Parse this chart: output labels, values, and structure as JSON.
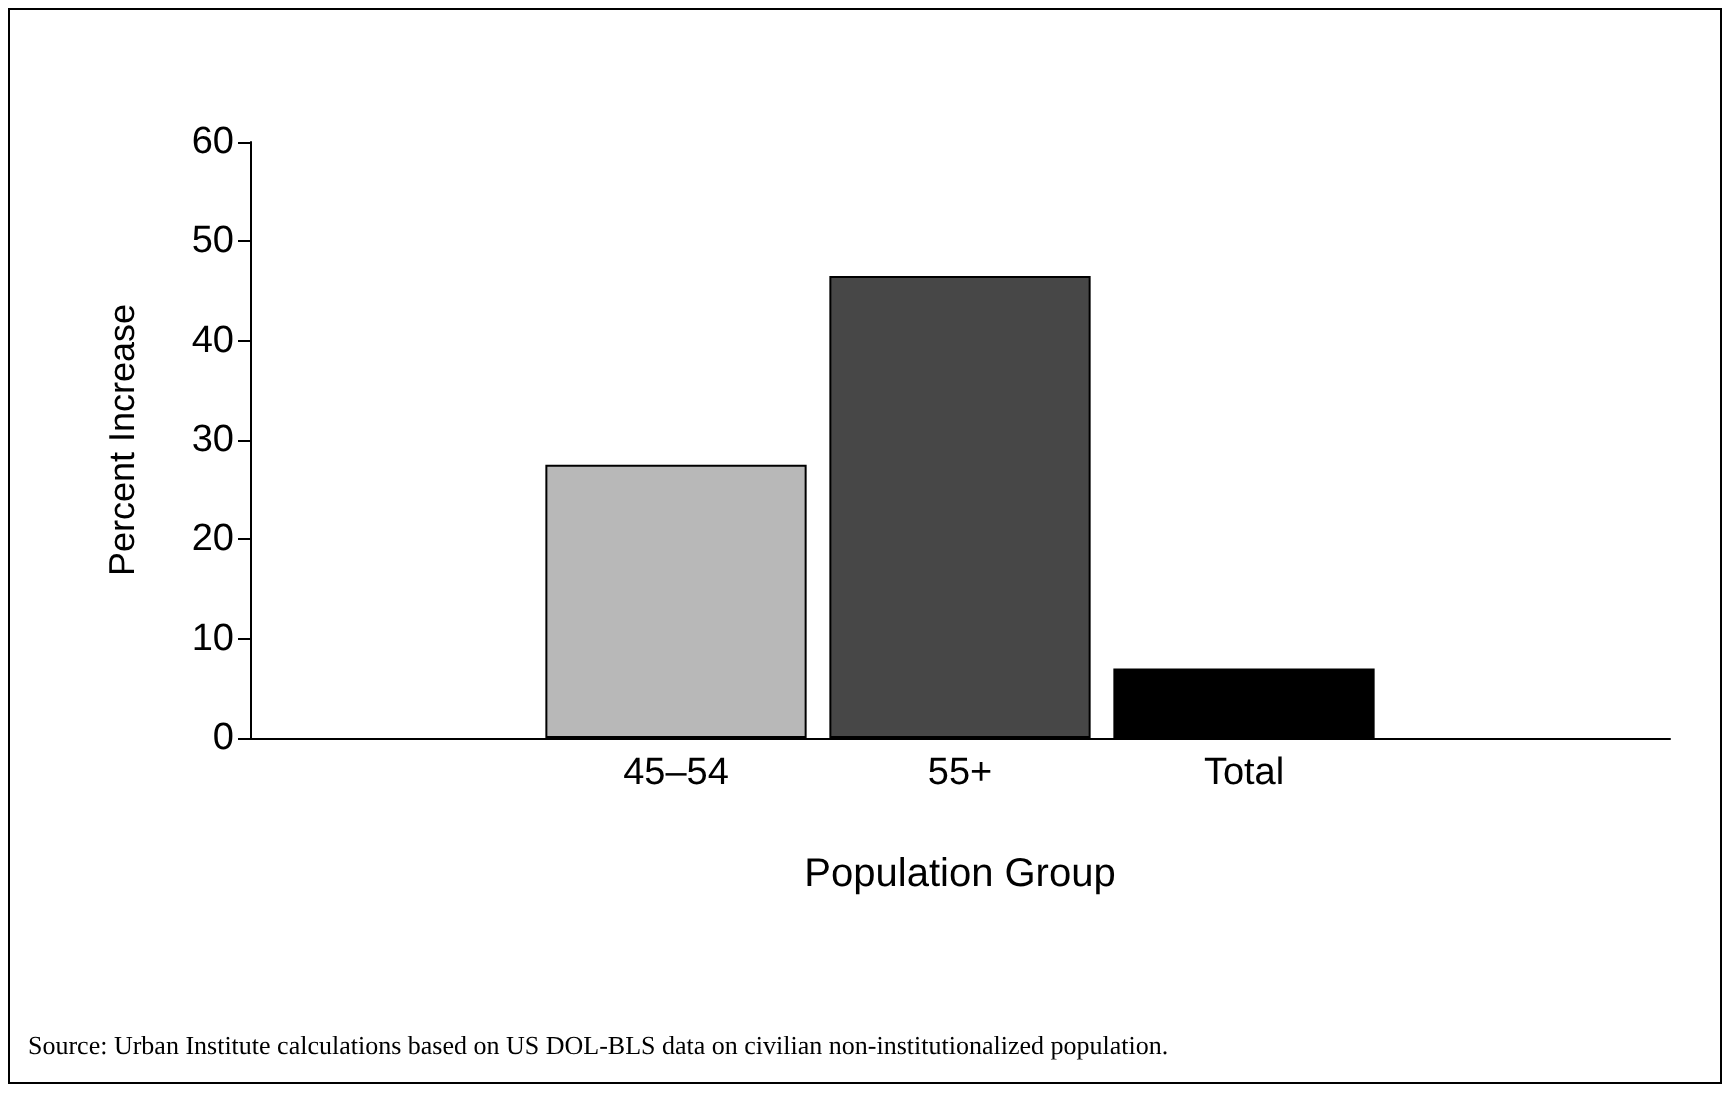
{
  "chart_data": {
    "type": "bar",
    "categories": [
      null,
      "45–54",
      "55+",
      "Total",
      null
    ],
    "values": [
      null,
      27.5,
      46.5,
      7,
      null
    ],
    "colors": [
      "#b8b8b8",
      "#b8b8b8",
      "#474747",
      "#000000",
      "#000000"
    ],
    "xlabel": "Population Group",
    "ylabel": "Percent Increase",
    "ylim": [
      0,
      60
    ],
    "yticks": [
      0,
      10,
      20,
      30,
      40,
      50,
      60
    ],
    "grid": false,
    "annotations": [
      "Source: Urban Institute calculations based on US DOL-BLS data on civilian non-institutionalized population."
    ]
  }
}
